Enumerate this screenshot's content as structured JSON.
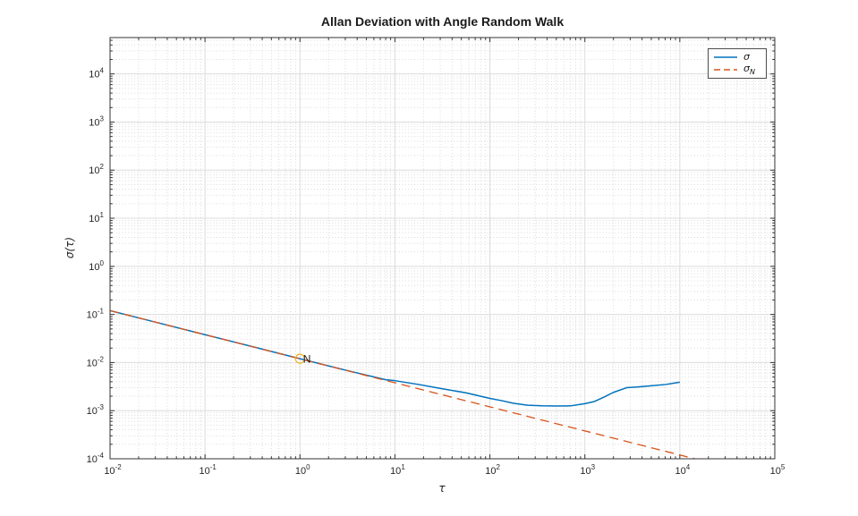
{
  "chart_data": {
    "type": "line",
    "title": "Allan Deviation with Angle Random Walk",
    "xlabel": "τ",
    "ylabel": "σ(τ)",
    "x_scale": "log",
    "y_scale": "log",
    "xlim": [
      0.01,
      100000
    ],
    "ylim": [
      0.0001,
      57000
    ],
    "x_tick_exponents": [
      -2,
      -1,
      0,
      1,
      2,
      3,
      4,
      5
    ],
    "y_tick_exponents": [
      -4,
      -3,
      -2,
      -1,
      0,
      1,
      2,
      3,
      4
    ],
    "grid": "major solid + minor dotted",
    "legend": {
      "position": "northeast",
      "entries": [
        {
          "symbol": "σ",
          "subscript": "",
          "color": "#0072BD",
          "line_style": "solid"
        },
        {
          "symbol": "σ",
          "subscript": "N",
          "color": "#D95319",
          "line_style": "dashed"
        }
      ]
    },
    "series": [
      {
        "name": "σ",
        "color": "#0072BD",
        "line_style": "solid",
        "points": [
          [
            0.01,
            0.12
          ],
          [
            0.0316,
            0.0675
          ],
          [
            0.1,
            0.038
          ],
          [
            0.316,
            0.0214
          ],
          [
            1,
            0.012
          ],
          [
            3.16,
            0.0068
          ],
          [
            8,
            0.0044
          ],
          [
            10,
            0.0042
          ],
          [
            17.8,
            0.0035
          ],
          [
            31.6,
            0.00285
          ],
          [
            56,
            0.00235
          ],
          [
            100,
            0.0018
          ],
          [
            132,
            0.00162
          ],
          [
            178,
            0.00142
          ],
          [
            250,
            0.0013
          ],
          [
            355,
            0.00126
          ],
          [
            500,
            0.00125
          ],
          [
            710,
            0.00126
          ],
          [
            1000,
            0.0014
          ],
          [
            1260,
            0.00155
          ],
          [
            1580,
            0.0019
          ],
          [
            2000,
            0.0024
          ],
          [
            2750,
            0.003
          ],
          [
            3550,
            0.0031
          ],
          [
            5000,
            0.0033
          ],
          [
            7100,
            0.0035
          ],
          [
            10000,
            0.0039
          ]
        ]
      },
      {
        "name": "σN",
        "color": "#D95319",
        "line_style": "dashed",
        "points": [
          [
            0.01,
            0.12
          ],
          [
            14400,
            0.0001
          ]
        ]
      }
    ],
    "annotations": [
      {
        "label": "N",
        "tau": 1,
        "sigma": 0.012,
        "marker": "circle",
        "marker_color": "#EDB120"
      }
    ]
  }
}
